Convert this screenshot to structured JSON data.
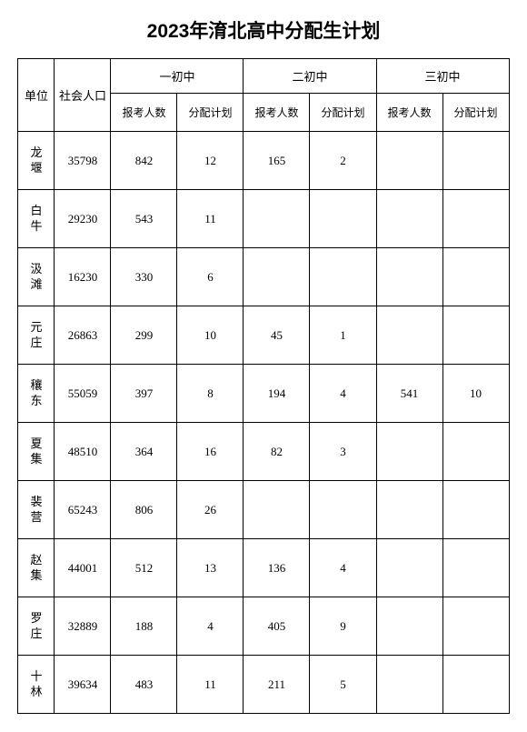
{
  "title": "2023年淯北高中分配生计划",
  "header": {
    "unit": "单位",
    "population": "社会人口",
    "schools": [
      "一初中",
      "二初中",
      "三初中"
    ],
    "sub": {
      "applicants": "报考人数",
      "allocation": "分配计划"
    }
  },
  "rows": [
    {
      "unit": "龙堰",
      "pop": "35798",
      "s1a": "842",
      "s1b": "12",
      "s2a": "165",
      "s2b": "2",
      "s3a": "",
      "s3b": ""
    },
    {
      "unit": "白牛",
      "pop": "29230",
      "s1a": "543",
      "s1b": "11",
      "s2a": "",
      "s2b": "",
      "s3a": "",
      "s3b": ""
    },
    {
      "unit": "汲滩",
      "pop": "16230",
      "s1a": "330",
      "s1b": "6",
      "s2a": "",
      "s2b": "",
      "s3a": "",
      "s3b": ""
    },
    {
      "unit": "元庄",
      "pop": "26863",
      "s1a": "299",
      "s1b": "10",
      "s2a": "45",
      "s2b": "1",
      "s3a": "",
      "s3b": ""
    },
    {
      "unit": "穰东",
      "pop": "55059",
      "s1a": "397",
      "s1b": "8",
      "s2a": "194",
      "s2b": "4",
      "s3a": "541",
      "s3b": "10"
    },
    {
      "unit": "夏集",
      "pop": "48510",
      "s1a": "364",
      "s1b": "16",
      "s2a": "82",
      "s2b": "3",
      "s3a": "",
      "s3b": ""
    },
    {
      "unit": "裴营",
      "pop": "65243",
      "s1a": "806",
      "s1b": "26",
      "s2a": "",
      "s2b": "",
      "s3a": "",
      "s3b": ""
    },
    {
      "unit": "赵集",
      "pop": "44001",
      "s1a": "512",
      "s1b": "13",
      "s2a": "136",
      "s2b": "4",
      "s3a": "",
      "s3b": ""
    },
    {
      "unit": "罗庄",
      "pop": "32889",
      "s1a": "188",
      "s1b": "4",
      "s2a": "405",
      "s2b": "9",
      "s3a": "",
      "s3b": ""
    },
    {
      "unit": "十林",
      "pop": "39634",
      "s1a": "483",
      "s1b": "11",
      "s2a": "211",
      "s2b": "5",
      "s3a": "",
      "s3b": ""
    }
  ]
}
